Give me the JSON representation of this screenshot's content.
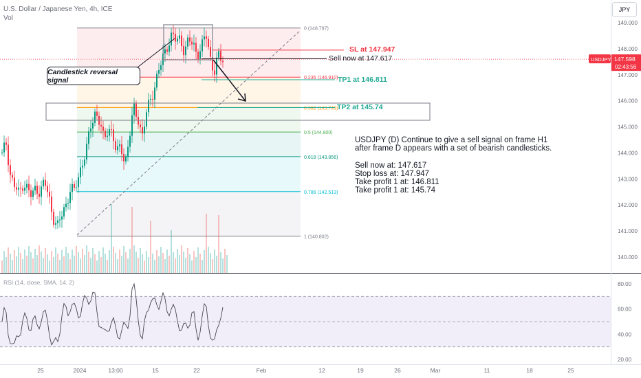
{
  "header": {
    "symbol_title": "U.S. Dollar / Japanese Yen, 4h, ICE",
    "volume_label": "Vol"
  },
  "currency_button": "JPY",
  "price_axis": {
    "ticks": [
      "149.000",
      "148.000",
      "147.000",
      "146.000",
      "145.000",
      "144.000",
      "143.000",
      "142.000",
      "141.000",
      "140.000"
    ],
    "current_tag": {
      "symbol": "USDJPY",
      "price": "147.598",
      "countdown": "02:43:56"
    }
  },
  "rsi_axis": {
    "ticks": [
      "80.00",
      "60.00",
      "40.00",
      "20.00"
    ]
  },
  "rsi_label": "RSI (14, close, SMA, 14, 2)",
  "time_axis": {
    "ticks": [
      "25",
      "2024",
      "13:00",
      "15",
      "22",
      "Feb",
      "12",
      "19",
      "26",
      "Mar",
      "11",
      "18",
      "25"
    ]
  },
  "fib_levels": [
    {
      "ratio": "0",
      "label": "0 (148.797)",
      "color": "#787b86"
    },
    {
      "ratio": "0.236",
      "label": "0.236 (146.910)",
      "color": "#f23645"
    },
    {
      "ratio": "0.382",
      "label": "0.382 (145.743)",
      "color": "#ff9800"
    },
    {
      "ratio": "0.5",
      "label": "0.5 (144.800)",
      "color": "#4caf50"
    },
    {
      "ratio": "0.618",
      "label": "0.618 (143.856)",
      "color": "#089981"
    },
    {
      "ratio": "0.786",
      "label": "0.786 (142.513)",
      "color": "#00bcd4"
    },
    {
      "ratio": "1",
      "label": "1 (140.802)",
      "color": "#787b86"
    }
  ],
  "annotations": {
    "callout": "Candlestick reversal signal",
    "sl_label": "SL at 147.947",
    "sell_label": "Sell now at 147.617",
    "tp1_label": "TP1 at 146.811",
    "tp2_label": "TP2 at 145.74"
  },
  "note": {
    "line1": "USDJPY (D) Continue to give a sell signal on frame H1",
    "line2": "after frame D appears with a set of bearish candlesticks.",
    "line3": "Sell now at: 147.617",
    "line4": "Stop loss at: 147.947",
    "line5": "Take profit 1 at: 146.811",
    "line6": "Take profit 1 at: 145.74"
  },
  "colors": {
    "up": "#089981",
    "down": "#f23645",
    "rsi_line": "#434651",
    "rsi_band": "#7e57c2",
    "sl": "#f23645",
    "tp": "#22ab94"
  },
  "chart_data": {
    "type": "candlestick",
    "symbol": "USDJPY",
    "timeframe": "4h",
    "price_range": [
      139.6,
      149.5
    ],
    "rsi_range": [
      15,
      85
    ],
    "closes": [
      143.9,
      144.4,
      143.1,
      142.7,
      142.4,
      142.9,
      142.6,
      142.3,
      142.7,
      142.5,
      142.9,
      142.3,
      141.6,
      141.1,
      141.6,
      142.0,
      142.6,
      142.5,
      143.1,
      143.7,
      144.2,
      145.1,
      145.6,
      145.2,
      144.4,
      145.0,
      144.8,
      143.9,
      144.3,
      143.6,
      144.6,
      145.7,
      145.4,
      144.6,
      145.5,
      146.1,
      146.6,
      147.2,
      147.7,
      148.2,
      148.5,
      148.3,
      148.4,
      147.9,
      148.3,
      148.2,
      147.8,
      148.0,
      148.6,
      147.7,
      147.1,
      147.7,
      147.6
    ],
    "sl": 147.947,
    "entry": 147.617,
    "tp1": 146.811,
    "tp2": 145.74
  }
}
